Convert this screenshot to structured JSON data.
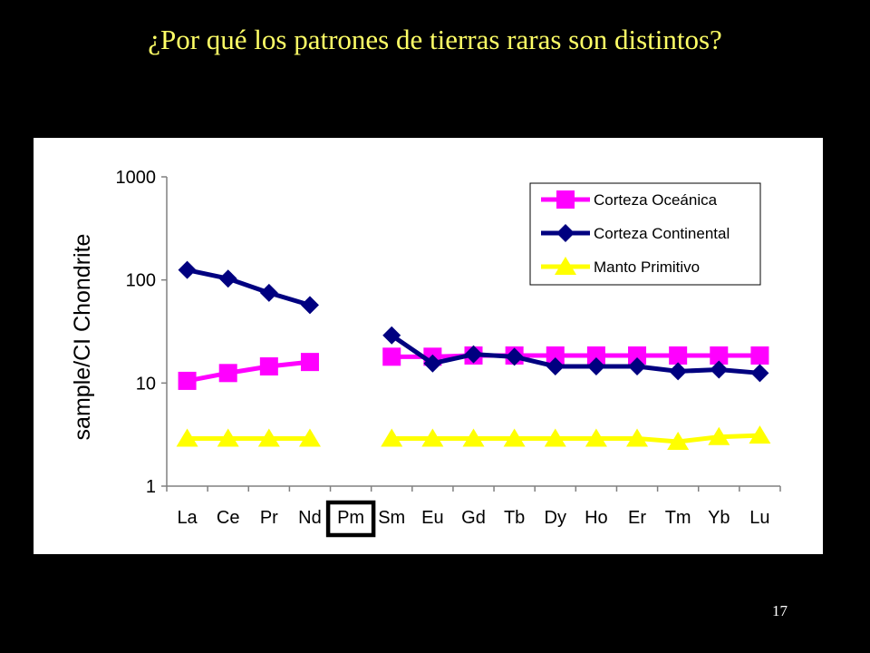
{
  "slide": {
    "title": "¿Por qué los patrones de tierras raras son distintos?",
    "page_number": "17"
  },
  "colors": {
    "background": "#000000",
    "title": "#ffff66",
    "panel": "#ffffff",
    "highlight_box": "#000000"
  },
  "chart_data": {
    "type": "line",
    "title": "",
    "xlabel": "",
    "ylabel": "sample/CI Chondrite",
    "y_scale": "log",
    "ylim": [
      1,
      1000
    ],
    "y_ticks": [
      "1",
      "10",
      "100",
      "1000"
    ],
    "y_tick_values": [
      1,
      10,
      100,
      1000
    ],
    "grid": false,
    "legend_position": "top-right",
    "categories": [
      "La",
      "Ce",
      "Pr",
      "Nd",
      "Pm",
      "Sm",
      "Eu",
      "Gd",
      "Tb",
      "Dy",
      "Ho",
      "Er",
      "Tm",
      "Yb",
      "Lu"
    ],
    "highlighted_category": "Pm",
    "series": [
      {
        "name": "Corteza Oceánica",
        "color": "#ff00ff",
        "marker": "square",
        "values": [
          10.5,
          12.5,
          14.5,
          16,
          null,
          18,
          18,
          18.5,
          18.5,
          18.5,
          18.5,
          18.5,
          18.5,
          18.5,
          18.5
        ]
      },
      {
        "name": "Corteza Continental",
        "color": "#000080",
        "marker": "diamond",
        "values": [
          125,
          103,
          75,
          57,
          null,
          29,
          15.5,
          19,
          18,
          14.5,
          14.5,
          14.5,
          13,
          13.5,
          12.5
        ]
      },
      {
        "name": "Manto Primitivo",
        "color": "#ffff00",
        "marker": "triangle",
        "values": [
          2.9,
          2.9,
          2.9,
          2.9,
          null,
          2.9,
          2.9,
          2.9,
          2.9,
          2.9,
          2.9,
          2.9,
          2.7,
          3.0,
          3.1
        ]
      }
    ]
  }
}
